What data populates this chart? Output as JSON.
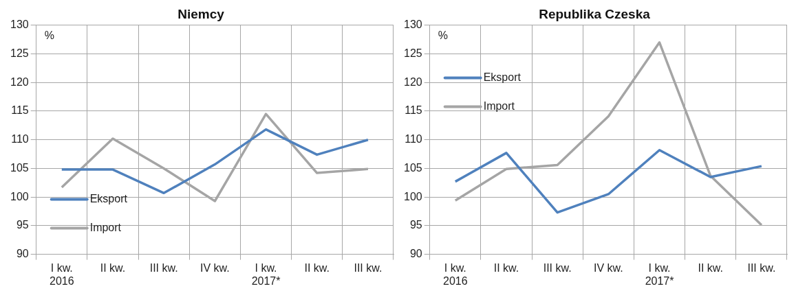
{
  "chart_data": [
    {
      "type": "line",
      "title": "Niemcy",
      "ylabel": "%",
      "categories": [
        "I kw.\n2016",
        "II kw.",
        "III kw.",
        "IV kw.",
        "I kw.\n2017*",
        "II kw.",
        "III kw."
      ],
      "series": [
        {
          "name": "Eksport",
          "color": "#4f81bd",
          "values": [
            104.8,
            104.8,
            100.7,
            105.7,
            111.8,
            107.4,
            110.0
          ]
        },
        {
          "name": "Import",
          "color": "#a5a5a5",
          "values": [
            101.7,
            110.2,
            105.0,
            99.3,
            114.5,
            104.2,
            104.9
          ]
        }
      ],
      "ylim": [
        90,
        130
      ],
      "yticks": [
        90,
        95,
        100,
        105,
        110,
        115,
        120,
        125,
        130
      ],
      "grid": true,
      "legend": "bottom left",
      "marker": "none",
      "line_style": "solid"
    },
    {
      "type": "line",
      "title": "Republika Czeska",
      "ylabel": "%",
      "categories": [
        "I kw.\n2016",
        "II kw.",
        "III kw.",
        "IV kw.",
        "I kw.\n2017*",
        "II kw.",
        "III kw."
      ],
      "series": [
        {
          "name": "Eksport",
          "color": "#4f81bd",
          "values": [
            102.7,
            107.7,
            97.3,
            100.5,
            108.2,
            103.5,
            105.4
          ]
        },
        {
          "name": "Import",
          "color": "#a5a5a5",
          "values": [
            99.4,
            104.9,
            105.6,
            114.1,
            127.0,
            103.7,
            95.1
          ]
        }
      ],
      "ylim": [
        90,
        130
      ],
      "yticks": [
        90,
        95,
        100,
        105,
        110,
        115,
        120,
        125,
        130
      ],
      "grid": true,
      "legend": "top left",
      "marker": "none",
      "line_style": "solid"
    }
  ]
}
